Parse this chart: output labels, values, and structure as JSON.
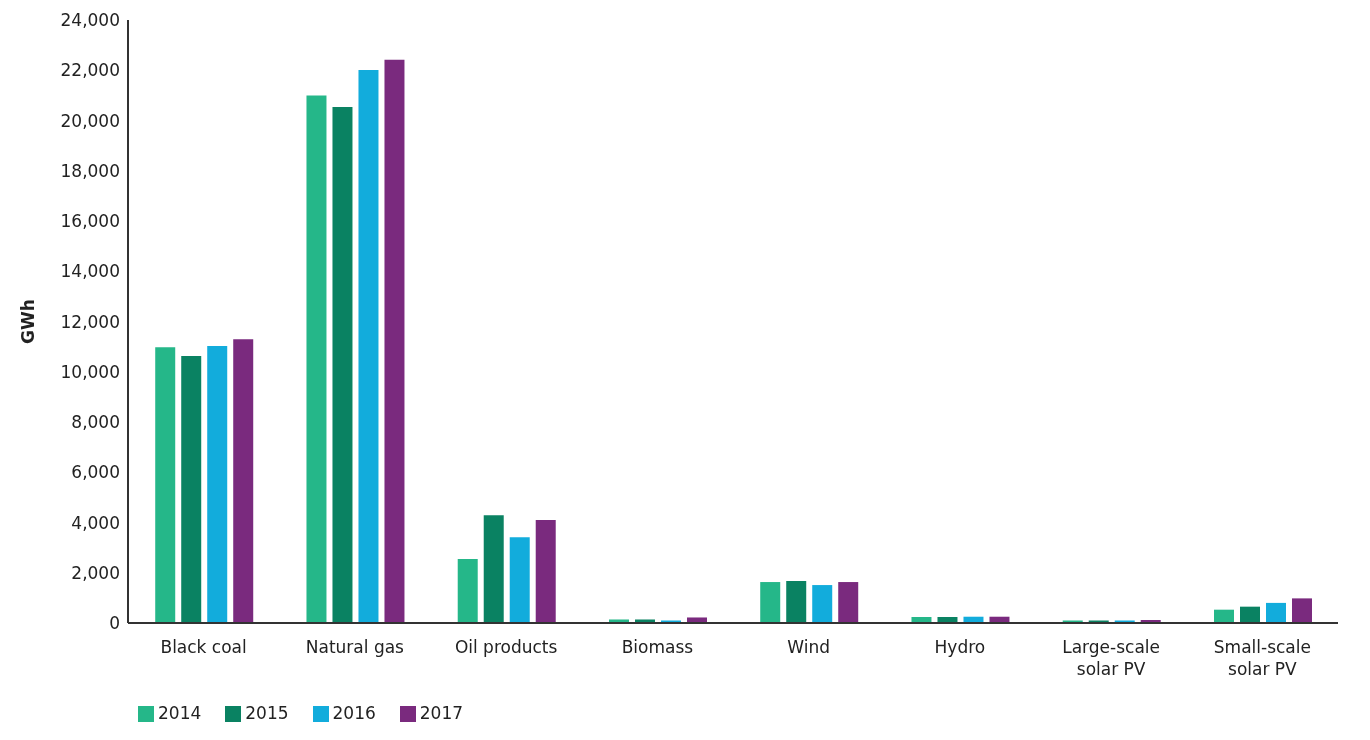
{
  "chart_data": {
    "type": "bar",
    "ylabel": "GWh",
    "categories": [
      "Black coal",
      "Natural gas",
      "Oil products",
      "Biomass",
      "Wind",
      "Hydro",
      "Large-scale solar PV",
      "Small-scale solar PV"
    ],
    "series": [
      {
        "name": "2014",
        "color": "#25b789",
        "values": [
          10980,
          21000,
          2550,
          140,
          1630,
          240,
          100,
          530
        ]
      },
      {
        "name": "2015",
        "color": "#0a8262",
        "values": [
          10630,
          20540,
          4290,
          140,
          1670,
          240,
          100,
          650
        ]
      },
      {
        "name": "2016",
        "color": "#12acdc",
        "values": [
          11020,
          22010,
          3410,
          100,
          1510,
          250,
          100,
          800
        ]
      },
      {
        "name": "2017",
        "color": "#7a2a7e",
        "values": [
          11290,
          22420,
          4100,
          220,
          1630,
          250,
          120,
          980
        ]
      }
    ],
    "ylim": [
      0,
      24000
    ],
    "yticks": [
      0,
      {
        "value": 2000,
        "label": "2,000"
      },
      {
        "value": 4000,
        "label": "4,000"
      },
      {
        "value": 6000,
        "label": "6,000"
      },
      {
        "value": 8000,
        "label": "8,000"
      },
      {
        "value": 10000,
        "label": "10,000"
      },
      {
        "value": 12000,
        "label": "12,000"
      },
      {
        "value": 14000,
        "label": "14,000"
      },
      {
        "value": 16000,
        "label": "16,000"
      },
      {
        "value": 18000,
        "label": "18,000"
      },
      {
        "value": 20000,
        "label": "20,000"
      },
      {
        "value": 22000,
        "label": "22,000"
      },
      {
        "value": 24000,
        "label": "24,000"
      }
    ],
    "grid": false,
    "legend": "bottom left"
  }
}
